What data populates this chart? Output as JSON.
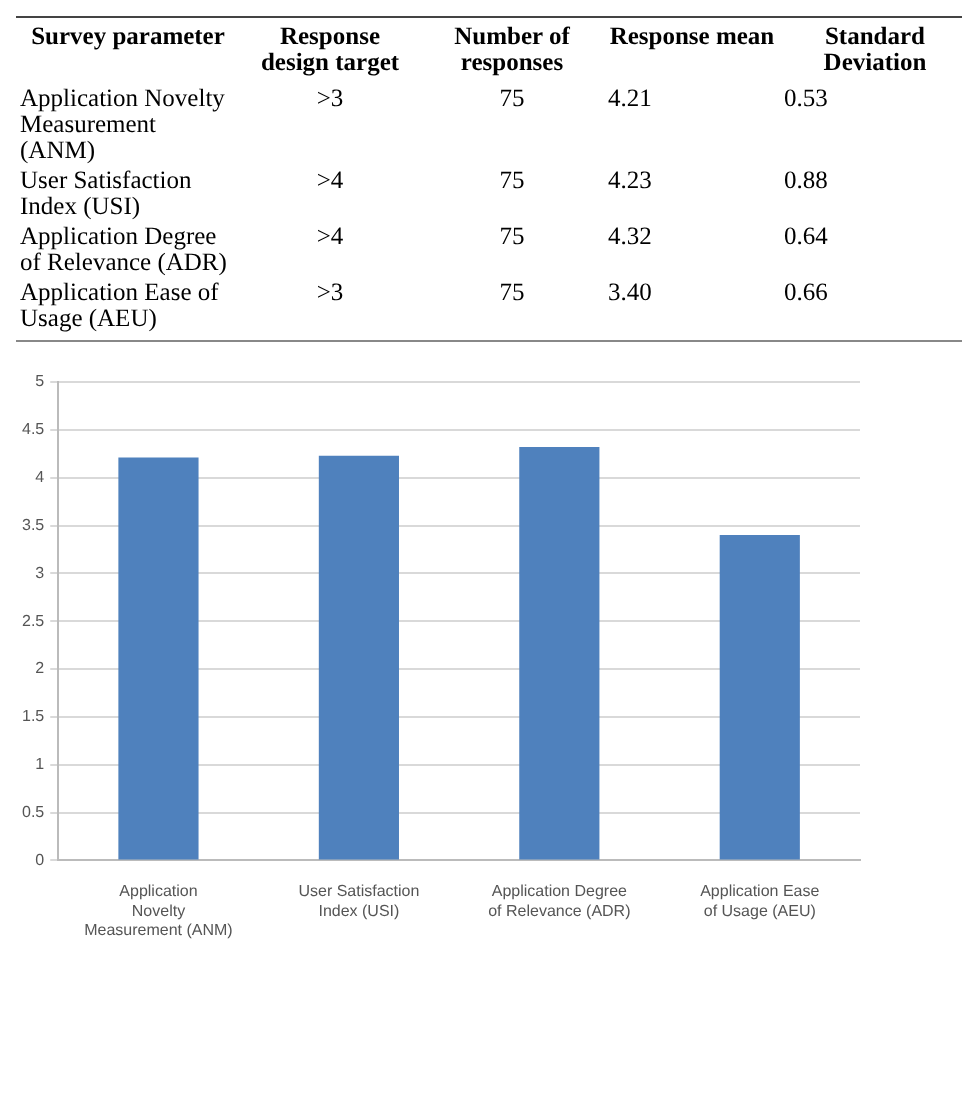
{
  "chart_data": [
    {
      "type": "other",
      "annotations": [
        "Survey parameter",
        "Response design target",
        "Number of responses",
        "Response mean",
        "Standard Deviation",
        "Application Novelty Measurement (ANM)",
        ">3",
        "75",
        "4.21",
        "0.53",
        "User Satisfaction Index (USI)",
        ">4",
        "75",
        "4.23",
        "0.88",
        "Application Degree of Relevance (ADR)",
        ">4",
        "75",
        "4.32",
        "0.64",
        "Application Ease of Usage (AEU)",
        ">3",
        "75",
        "3.40",
        "0.66"
      ]
    },
    {
      "type": "bar",
      "categories": [
        "Application Novelty Measurement (ANM)",
        "User Satisfaction Index (USI)",
        "Application Degree of Relevance (ADR)",
        "Application Ease of Usage (AEU)"
      ],
      "values": [
        4.21,
        4.23,
        4.32,
        3.4
      ],
      "color": "#4f81bd",
      "ylim": [
        0,
        5
      ],
      "yticks": [
        0,
        0.5,
        1,
        1.5,
        2,
        2.5,
        3,
        3.5,
        4,
        4.5,
        5
      ],
      "grid": "y"
    }
  ]
}
